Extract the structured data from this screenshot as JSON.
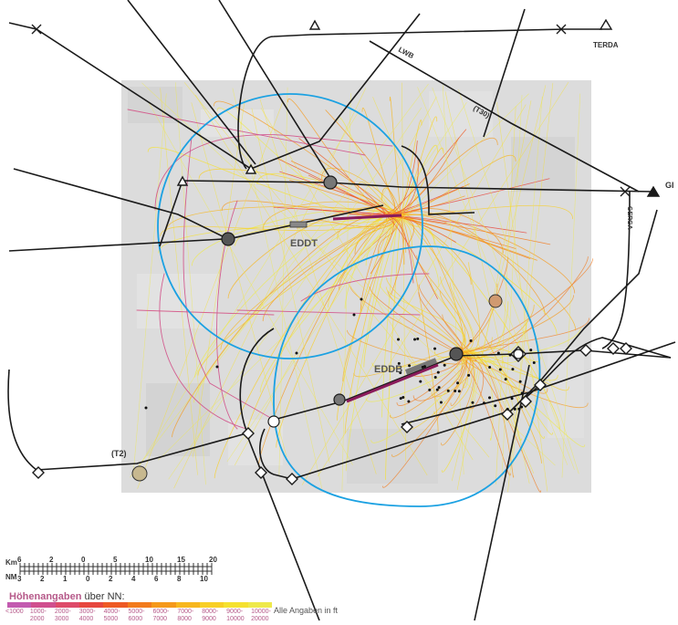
{
  "map": {
    "airports": [
      {
        "code": "EDDT"
      },
      {
        "code": "EDDB"
      }
    ],
    "waypoints": [
      {
        "name": "TERDA"
      },
      {
        "name": "GI"
      },
      {
        "name": "GERGA"
      }
    ],
    "route_labels": {
      "lwb": "LWB",
      "t30": "(T30)",
      "t2": "(T2)"
    }
  },
  "scale": {
    "km_label": "Km",
    "km_ticks": [
      "6",
      "2",
      "0",
      "5",
      "10",
      "15",
      "20"
    ],
    "nm_label": "NM",
    "nm_ticks": [
      "3",
      "2",
      "1",
      "0",
      "2",
      "4",
      "6",
      "8",
      "10"
    ]
  },
  "legend": {
    "title": "Höhenangaben",
    "subtitle": "über NN:",
    "note": "Alle Angaben in ft",
    "bins": [
      {
        "label_top": "<1000",
        "label_bottom": "",
        "color": "#c35bb0"
      },
      {
        "label_top": "1000-",
        "label_bottom": "2000",
        "color": "#d04f8e"
      },
      {
        "label_top": "2000-",
        "label_bottom": "3000",
        "color": "#de4b6a"
      },
      {
        "label_top": "3000-",
        "label_bottom": "4000",
        "color": "#e7473f"
      },
      {
        "label_top": "4000-",
        "label_bottom": "5000",
        "color": "#ee5a25"
      },
      {
        "label_top": "5000-",
        "label_bottom": "6000",
        "color": "#f27a1d"
      },
      {
        "label_top": "6000-",
        "label_bottom": "7000",
        "color": "#f5991b"
      },
      {
        "label_top": "7000-",
        "label_bottom": "8000",
        "color": "#f7b71e"
      },
      {
        "label_top": "8000-",
        "label_bottom": "9000",
        "color": "#f8cf26"
      },
      {
        "label_top": "9000-",
        "label_bottom": "10000",
        "color": "#f5e12f"
      },
      {
        "label_top": "10000-",
        "label_bottom": "20000",
        "color": "#eee94b"
      }
    ]
  }
}
